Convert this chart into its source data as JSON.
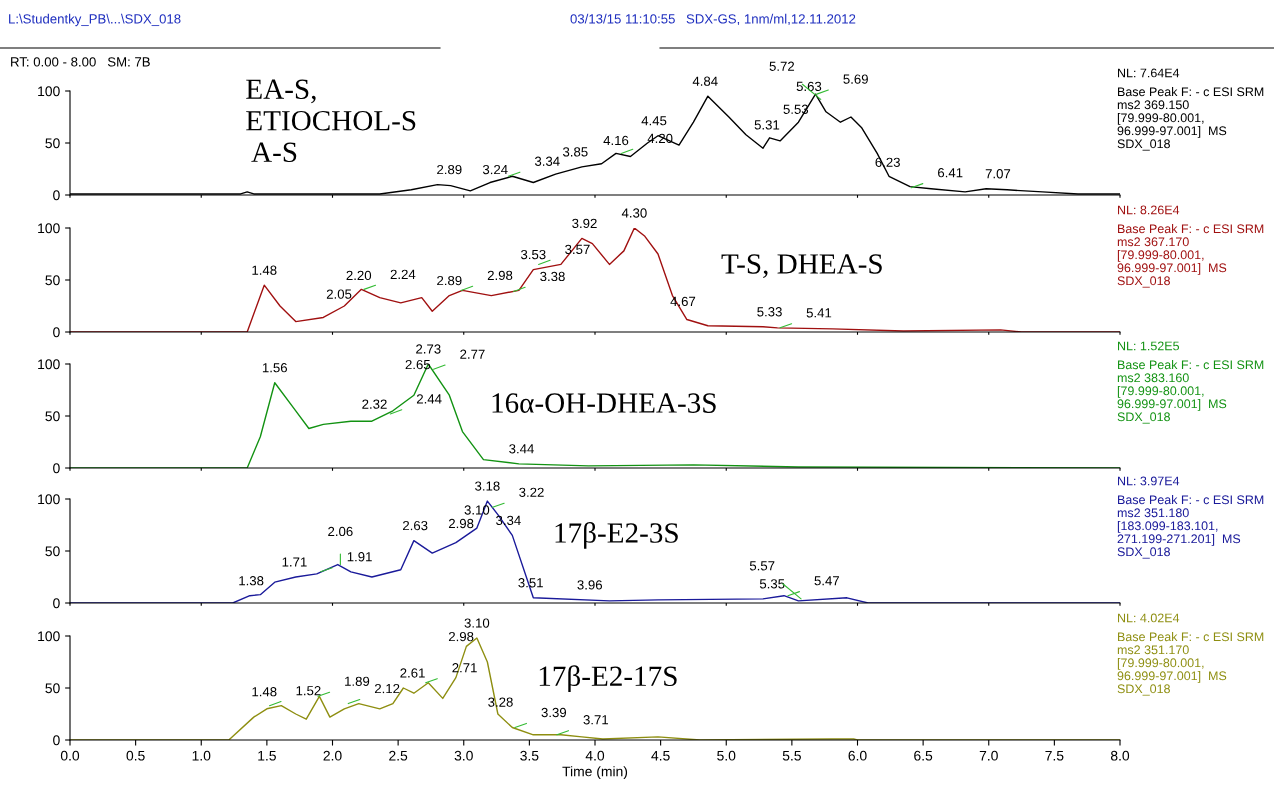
{
  "chart_data": [
    {
      "type": "line",
      "xlim": [
        0,
        8
      ],
      "ylim": [
        0,
        100
      ],
      "yticks": [
        0,
        50,
        100
      ],
      "tick_labels": "y",
      "grid": false,
      "legend": false,
      "x": [
        0,
        1.2,
        1.3,
        1.35,
        1.4,
        1.5,
        2.36,
        2.6,
        2.8,
        2.9,
        3.05,
        3.2,
        3.37,
        3.53,
        3.7,
        3.9,
        4.05,
        4.16,
        4.27,
        4.4,
        4.48,
        4.64,
        4.75,
        4.86,
        5.02,
        5.15,
        5.28,
        5.33,
        5.41,
        5.55,
        5.68,
        5.76,
        5.87,
        5.95,
        6.03,
        6.15,
        6.24,
        6.4,
        6.56,
        6.82,
        6.98,
        7.14,
        7.41,
        7.68,
        8.0
      ],
      "series": [
        {
          "color": "#000000",
          "values": [
            1,
            1,
            1,
            3,
            1,
            1,
            1,
            5,
            10,
            9,
            4,
            12,
            18,
            12,
            20,
            27,
            30,
            40,
            37,
            50,
            57,
            48,
            70,
            95,
            75,
            58,
            45,
            55,
            52,
            70,
            97,
            80,
            70,
            75,
            65,
            40,
            18,
            8,
            6,
            3,
            6,
            5,
            3,
            1,
            1
          ]
        }
      ],
      "annotations": [
        "L:\\Studentky_PB\\...\\SDX_018",
        "03/13/15 11:10:55",
        "SDX-GS, 1nm/ml,12.11.2012",
        "RT: 0.00 - 8.00   SM: 7B",
        "EA-S,\nETIOCHOL-S\n A-S",
        "NL: 7.64E4",
        "Base Peak F: - c ESI SRM\nms2 369.150\n[79.999-80.001,\n96.999-97.001]  MS\nSDX_018",
        {
          "text": "2.89",
          "x": 2.89,
          "y": 10
        },
        {
          "text": "3.24",
          "x": 3.24,
          "y": 10
        },
        {
          "text": "3.34",
          "x": 3.34,
          "y": 18
        },
        {
          "text": "3.85",
          "x": 3.85,
          "y": 27
        },
        {
          "text": "4.16",
          "x": 4.16,
          "y": 38
        },
        {
          "text": "4.20",
          "x": 4.2,
          "y": 40
        },
        {
          "text": "4.45",
          "x": 4.45,
          "y": 57
        },
        {
          "text": "4.84",
          "x": 4.84,
          "y": 95
        },
        {
          "text": "5.31",
          "x": 5.31,
          "y": 53
        },
        {
          "text": "5.53",
          "x": 5.53,
          "y": 68
        },
        {
          "text": "5.63",
          "x": 5.63,
          "y": 90
        },
        {
          "text": "5.69",
          "x": 5.69,
          "y": 97
        },
        {
          "text": "5.72",
          "x": 5.72,
          "y": 92
        },
        {
          "text": "6.23",
          "x": 6.23,
          "y": 17
        },
        {
          "text": "6.41",
          "x": 6.41,
          "y": 7
        },
        {
          "text": "7.07",
          "x": 7.07,
          "y": 6
        }
      ]
    },
    {
      "type": "line",
      "xlim": [
        0,
        8
      ],
      "ylim": [
        0,
        100
      ],
      "yticks": [
        0,
        50,
        100
      ],
      "tick_labels": "y",
      "grid": false,
      "legend": false,
      "x": [
        0,
        1.35,
        1.48,
        1.6,
        1.72,
        1.93,
        2.09,
        2.22,
        2.36,
        2.52,
        2.68,
        2.76,
        2.89,
        2.99,
        3.21,
        3.42,
        3.53,
        3.74,
        3.9,
        3.98,
        4.11,
        4.22,
        4.3,
        4.38,
        4.48,
        4.59,
        4.7,
        4.86,
        5.28,
        5.39,
        5.81,
        6.35,
        7.09,
        7.25,
        8.0
      ],
      "series": [
        {
          "color": "#a01010",
          "values": [
            0,
            0,
            45,
            25,
            10,
            14,
            25,
            41,
            33,
            28,
            33,
            20,
            35,
            40,
            35,
            40,
            60,
            65,
            90,
            85,
            65,
            78,
            100,
            92,
            75,
            35,
            12,
            6,
            5,
            4,
            3,
            1,
            2,
            0,
            0
          ]
        }
      ],
      "annotations": [
        "T-S, DHEA-S",
        "NL: 8.26E4",
        "Base Peak F: - c ESI SRM\nms2 367.170\n[79.999-80.001,\n96.999-97.001]  MS\nSDX_018",
        {
          "text": "1.48",
          "x": 1.48,
          "y": 45
        },
        {
          "text": "2.05",
          "x": 2.05,
          "y": 22
        },
        {
          "text": "2.20",
          "x": 2.2,
          "y": 40
        },
        {
          "text": "2.24",
          "x": 2.24,
          "y": 41
        },
        {
          "text": "2.89",
          "x": 2.89,
          "y": 35
        },
        {
          "text": "2.98",
          "x": 2.98,
          "y": 40
        },
        {
          "text": "3.38",
          "x": 3.38,
          "y": 39
        },
        {
          "text": "3.53",
          "x": 3.53,
          "y": 60
        },
        {
          "text": "3.57",
          "x": 3.57,
          "y": 65
        },
        {
          "text": "3.92",
          "x": 3.92,
          "y": 90
        },
        {
          "text": "4.30",
          "x": 4.3,
          "y": 100
        },
        {
          "text": "4.67",
          "x": 4.67,
          "y": 15
        },
        {
          "text": "5.33",
          "x": 5.33,
          "y": 5
        },
        {
          "text": "5.41",
          "x": 5.41,
          "y": 4
        }
      ]
    },
    {
      "type": "line",
      "xlim": [
        0,
        8
      ],
      "ylim": [
        0,
        100
      ],
      "yticks": [
        0,
        50,
        100
      ],
      "tick_labels": "y",
      "grid": false,
      "legend": false,
      "x": [
        0,
        1.35,
        1.45,
        1.56,
        1.72,
        1.82,
        1.93,
        2.14,
        2.3,
        2.46,
        2.62,
        2.73,
        2.89,
        2.99,
        3.15,
        3.42,
        3.95,
        4.75,
        5.55,
        8.0
      ],
      "series": [
        {
          "color": "#129212",
          "values": [
            0,
            0,
            30,
            82,
            55,
            38,
            42,
            45,
            45,
            55,
            70,
            100,
            70,
            35,
            8,
            4,
            2,
            3,
            1,
            0
          ]
        }
      ],
      "annotations": [
        "16α-OH-DHEA-3S",
        "NL: 1.52E5",
        "Base Peak F: - c ESI SRM\nms2 383.160\n[79.999-80.001,\n96.999-97.001]  MS\nSDX_018",
        {
          "text": "1.56",
          "x": 1.56,
          "y": 82
        },
        {
          "text": "2.32",
          "x": 2.32,
          "y": 47
        },
        {
          "text": "2.44",
          "x": 2.44,
          "y": 52
        },
        {
          "text": "2.65",
          "x": 2.65,
          "y": 85
        },
        {
          "text": "2.73",
          "x": 2.73,
          "y": 100
        },
        {
          "text": "2.77",
          "x": 2.77,
          "y": 95
        },
        {
          "text": "3.44",
          "x": 3.44,
          "y": 4
        }
      ]
    },
    {
      "type": "line",
      "xlim": [
        0,
        8
      ],
      "ylim": [
        0,
        100
      ],
      "yticks": [
        0,
        50,
        100
      ],
      "tick_labels": "y",
      "grid": false,
      "legend": false,
      "x": [
        0,
        1.24,
        1.37,
        1.45,
        1.56,
        1.72,
        1.88,
        2.04,
        2.14,
        2.3,
        2.52,
        2.62,
        2.76,
        2.94,
        3.1,
        3.18,
        3.26,
        3.37,
        3.53,
        4.11,
        4.48,
        5.28,
        5.44,
        5.55,
        5.92,
        6.08,
        8.0
      ],
      "series": [
        {
          "color": "#1a1a9a",
          "values": [
            0,
            0,
            7,
            8,
            20,
            25,
            28,
            37,
            30,
            25,
            32,
            60,
            48,
            58,
            72,
            98,
            85,
            65,
            5,
            2,
            3,
            4,
            7,
            2,
            5,
            0,
            0
          ]
        }
      ],
      "annotations": [
        "17β-E2-3S",
        "NL: 3.97E4",
        "Base Peak F: - c ESI SRM\nms2 351.180\n[183.099-183.101,\n271.199-271.201]  MS\nSDX_018",
        {
          "text": "1.38",
          "x": 1.38,
          "y": 7
        },
        {
          "text": "1.71",
          "x": 1.71,
          "y": 25
        },
        {
          "text": "1.91",
          "x": 1.91,
          "y": 30
        },
        {
          "text": "2.06",
          "x": 2.06,
          "y": 37
        },
        {
          "text": "2.63",
          "x": 2.63,
          "y": 60
        },
        {
          "text": "2.98",
          "x": 2.98,
          "y": 62
        },
        {
          "text": "3.10",
          "x": 3.1,
          "y": 75
        },
        {
          "text": "3.18",
          "x": 3.18,
          "y": 98
        },
        {
          "text": "3.22",
          "x": 3.22,
          "y": 92
        },
        {
          "text": "3.34",
          "x": 3.34,
          "y": 65
        },
        {
          "text": "3.51",
          "x": 3.51,
          "y": 5
        },
        {
          "text": "3.96",
          "x": 3.96,
          "y": 3
        },
        {
          "text": "5.35",
          "x": 5.35,
          "y": 4
        },
        {
          "text": "5.47",
          "x": 5.47,
          "y": 7
        },
        {
          "text": "5.57",
          "x": 5.57,
          "y": 4
        }
      ]
    },
    {
      "type": "line",
      "xlim": [
        0,
        8
      ],
      "ylim": [
        0,
        100
      ],
      "yticks": [
        0,
        50,
        100
      ],
      "grid": false,
      "legend": false,
      "xlabel": "Time (min)",
      "xticks": [
        {
          "value": 0,
          "label": "0.0"
        },
        {
          "value": 0.5,
          "label": "0.5"
        },
        {
          "value": 1,
          "label": "1.0"
        },
        {
          "value": 1.5,
          "label": "1.5"
        },
        {
          "value": 2,
          "label": "2.0"
        },
        {
          "value": 2.5,
          "label": "2.5"
        },
        {
          "value": 3,
          "label": "3.0"
        },
        {
          "value": 3.5,
          "label": "3.5"
        },
        {
          "value": 4,
          "label": "4.0"
        },
        {
          "value": 4.5,
          "label": "4.5"
        },
        {
          "value": 5,
          "label": "5.0"
        },
        {
          "value": 5.5,
          "label": "5.5"
        },
        {
          "value": 6,
          "label": "6.0"
        },
        {
          "value": 6.5,
          "label": "6.5"
        },
        {
          "value": 7,
          "label": "7.0"
        },
        {
          "value": 7.5,
          "label": "7.5"
        },
        {
          "value": 8,
          "label": "8.0"
        }
      ],
      "x": [
        0,
        1.21,
        1.4,
        1.5,
        1.61,
        1.72,
        1.8,
        1.9,
        1.98,
        2.09,
        2.2,
        2.36,
        2.46,
        2.54,
        2.62,
        2.73,
        2.84,
        2.94,
        3.02,
        3.1,
        3.18,
        3.26,
        3.37,
        3.53,
        3.74,
        3.9,
        4.06,
        4.48,
        4.8,
        5.81,
        5.97,
        6.0,
        8.0
      ],
      "series": [
        {
          "color": "#8e8e10",
          "values": [
            0,
            0,
            22,
            30,
            33,
            25,
            20,
            42,
            22,
            30,
            35,
            30,
            35,
            50,
            45,
            55,
            40,
            60,
            90,
            98,
            75,
            25,
            12,
            5,
            5,
            3,
            1,
            3,
            0,
            1,
            1,
            0,
            0
          ]
        }
      ],
      "annotations": [
        "17β-E2-17S",
        "NL: 4.02E4",
        "Base Peak F: - c ESI SRM\nms2 351.170\n[79.999-80.001,\n96.999-97.001]  MS\nSDX_018",
        {
          "text": "1.48",
          "x": 1.48,
          "y": 32
        },
        {
          "text": "1.52",
          "x": 1.52,
          "y": 33
        },
        {
          "text": "1.89",
          "x": 1.89,
          "y": 42
        },
        {
          "text": "2.12",
          "x": 2.12,
          "y": 35
        },
        {
          "text": "2.61",
          "x": 2.61,
          "y": 50
        },
        {
          "text": "2.71",
          "x": 2.71,
          "y": 55
        },
        {
          "text": "2.98",
          "x": 2.98,
          "y": 85
        },
        {
          "text": "3.10",
          "x": 3.1,
          "y": 98
        },
        {
          "text": "3.28",
          "x": 3.28,
          "y": 22
        },
        {
          "text": "3.39",
          "x": 3.39,
          "y": 12
        },
        {
          "text": "3.71",
          "x": 3.71,
          "y": 5
        }
      ]
    }
  ]
}
